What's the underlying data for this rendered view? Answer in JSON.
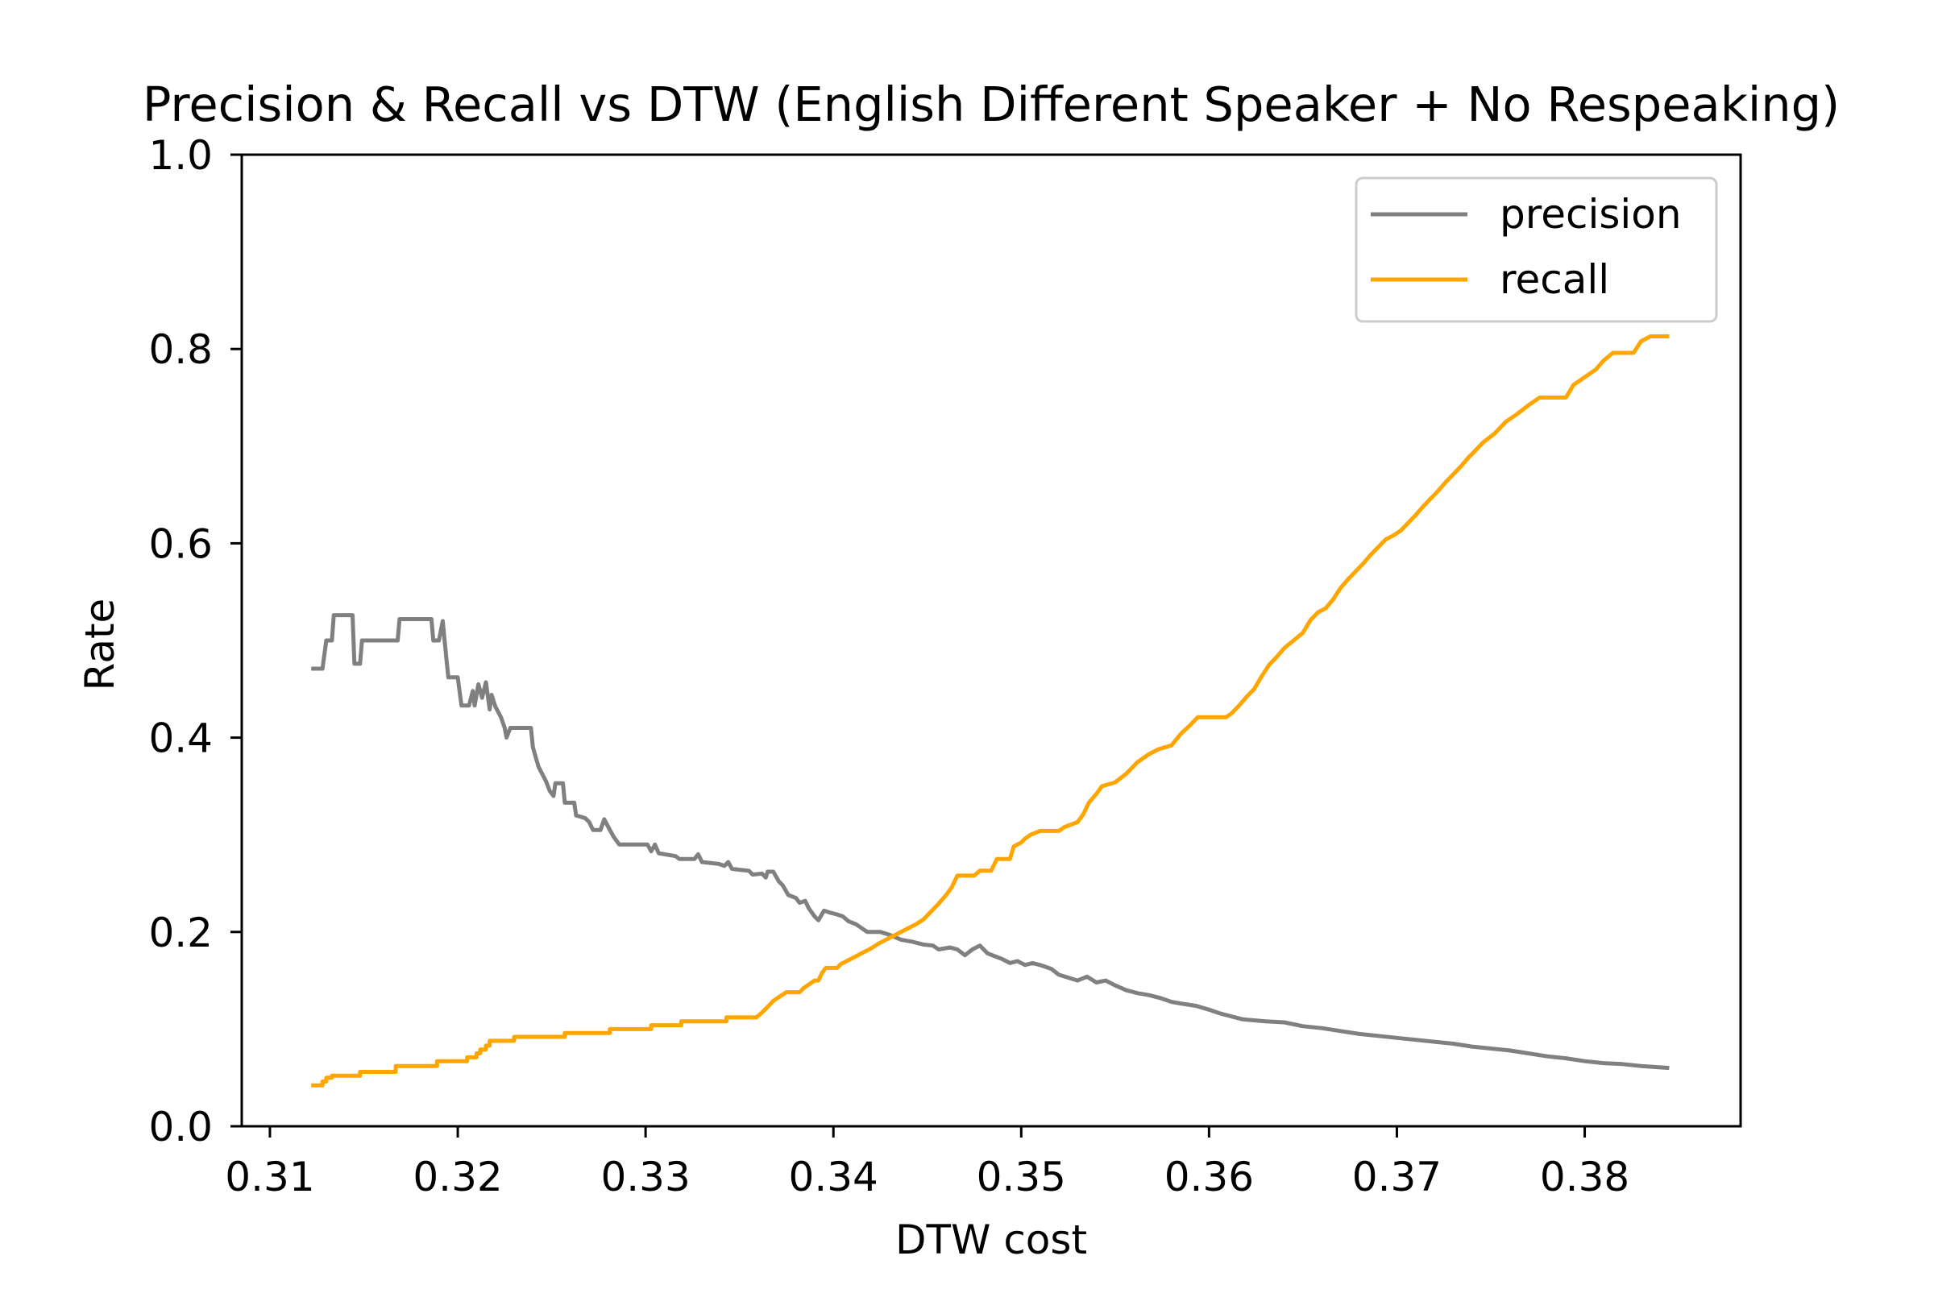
{
  "chart_data": {
    "type": "line",
    "title": "Precision & Recall vs DTW (English Different Speaker + No Respeaking)",
    "xlabel": "DTW cost",
    "ylabel": "Rate",
    "xlim": [
      0.3085,
      0.3883
    ],
    "ylim": [
      0.0,
      1.0
    ],
    "xticks": [
      0.31,
      0.32,
      0.33,
      0.34,
      0.35,
      0.36,
      0.37,
      0.38
    ],
    "xtick_labels": [
      "0.31",
      "0.32",
      "0.33",
      "0.34",
      "0.35",
      "0.36",
      "0.37",
      "0.38"
    ],
    "yticks": [
      0.0,
      0.2,
      0.4,
      0.6,
      0.8,
      1.0
    ],
    "ytick_labels": [
      "0.0",
      "0.2",
      "0.4",
      "0.6",
      "0.8",
      "1.0"
    ],
    "grid": false,
    "legend_position": "upper right",
    "series": [
      {
        "name": "precision",
        "color": "#808080",
        "points": [
          [
            0.3122,
            0.471
          ],
          [
            0.3128,
            0.471
          ],
          [
            0.313,
            0.5
          ],
          [
            0.3133,
            0.5
          ],
          [
            0.3134,
            0.526
          ],
          [
            0.3144,
            0.526
          ],
          [
            0.3145,
            0.476
          ],
          [
            0.3148,
            0.476
          ],
          [
            0.3149,
            0.5
          ],
          [
            0.3168,
            0.5
          ],
          [
            0.3169,
            0.522
          ],
          [
            0.3186,
            0.522
          ],
          [
            0.3187,
            0.5
          ],
          [
            0.319,
            0.5
          ],
          [
            0.3192,
            0.52
          ],
          [
            0.3194,
            0.48
          ],
          [
            0.3195,
            0.462
          ],
          [
            0.32,
            0.462
          ],
          [
            0.3202,
            0.433
          ],
          [
            0.3206,
            0.433
          ],
          [
            0.3208,
            0.448
          ],
          [
            0.3209,
            0.433
          ],
          [
            0.3211,
            0.455
          ],
          [
            0.3213,
            0.441
          ],
          [
            0.3215,
            0.457
          ],
          [
            0.3217,
            0.429
          ],
          [
            0.3218,
            0.444
          ],
          [
            0.322,
            0.432
          ],
          [
            0.3223,
            0.421
          ],
          [
            0.3225,
            0.41
          ],
          [
            0.3226,
            0.4
          ],
          [
            0.3228,
            0.41
          ],
          [
            0.3239,
            0.41
          ],
          [
            0.324,
            0.39
          ],
          [
            0.3243,
            0.37
          ],
          [
            0.3247,
            0.355
          ],
          [
            0.3249,
            0.345
          ],
          [
            0.3251,
            0.34
          ],
          [
            0.3252,
            0.353
          ],
          [
            0.3256,
            0.353
          ],
          [
            0.3257,
            0.333
          ],
          [
            0.3262,
            0.333
          ],
          [
            0.3263,
            0.32
          ],
          [
            0.3268,
            0.317
          ],
          [
            0.327,
            0.313
          ],
          [
            0.3272,
            0.305
          ],
          [
            0.3276,
            0.305
          ],
          [
            0.3278,
            0.316
          ],
          [
            0.3281,
            0.305
          ],
          [
            0.3283,
            0.298
          ],
          [
            0.3286,
            0.29
          ],
          [
            0.3292,
            0.29
          ],
          [
            0.3301,
            0.29
          ],
          [
            0.3303,
            0.283
          ],
          [
            0.3305,
            0.29
          ],
          [
            0.3307,
            0.281
          ],
          [
            0.3316,
            0.278
          ],
          [
            0.3318,
            0.275
          ],
          [
            0.3326,
            0.275
          ],
          [
            0.3328,
            0.28
          ],
          [
            0.333,
            0.272
          ],
          [
            0.3339,
            0.27
          ],
          [
            0.3342,
            0.268
          ],
          [
            0.3344,
            0.272
          ],
          [
            0.3346,
            0.265
          ],
          [
            0.335,
            0.264
          ],
          [
            0.3355,
            0.263
          ],
          [
            0.3357,
            0.259
          ],
          [
            0.3362,
            0.26
          ],
          [
            0.3364,
            0.256
          ],
          [
            0.3365,
            0.262
          ],
          [
            0.3368,
            0.262
          ],
          [
            0.3371,
            0.252
          ],
          [
            0.3373,
            0.248
          ],
          [
            0.3376,
            0.238
          ],
          [
            0.338,
            0.235
          ],
          [
            0.3382,
            0.23
          ],
          [
            0.3385,
            0.232
          ],
          [
            0.3387,
            0.224
          ],
          [
            0.339,
            0.216
          ],
          [
            0.3392,
            0.212
          ],
          [
            0.3395,
            0.222
          ],
          [
            0.3398,
            0.22
          ],
          [
            0.3402,
            0.218
          ],
          [
            0.3405,
            0.216
          ],
          [
            0.3408,
            0.211
          ],
          [
            0.3412,
            0.208
          ],
          [
            0.3415,
            0.204
          ],
          [
            0.3418,
            0.2
          ],
          [
            0.3425,
            0.2
          ],
          [
            0.343,
            0.197
          ],
          [
            0.3436,
            0.192
          ],
          [
            0.3442,
            0.19
          ],
          [
            0.3448,
            0.187
          ],
          [
            0.3453,
            0.186
          ],
          [
            0.3456,
            0.182
          ],
          [
            0.3462,
            0.184
          ],
          [
            0.3466,
            0.182
          ],
          [
            0.347,
            0.176
          ],
          [
            0.3474,
            0.182
          ],
          [
            0.3478,
            0.186
          ],
          [
            0.3482,
            0.178
          ],
          [
            0.3486,
            0.175
          ],
          [
            0.349,
            0.172
          ],
          [
            0.3494,
            0.168
          ],
          [
            0.3498,
            0.17
          ],
          [
            0.3502,
            0.166
          ],
          [
            0.3506,
            0.168
          ],
          [
            0.351,
            0.166
          ],
          [
            0.3516,
            0.162
          ],
          [
            0.352,
            0.156
          ],
          [
            0.3525,
            0.153
          ],
          [
            0.353,
            0.15
          ],
          [
            0.3535,
            0.154
          ],
          [
            0.354,
            0.148
          ],
          [
            0.3545,
            0.15
          ],
          [
            0.355,
            0.145
          ],
          [
            0.3556,
            0.14
          ],
          [
            0.3562,
            0.137
          ],
          [
            0.3568,
            0.135
          ],
          [
            0.3574,
            0.132
          ],
          [
            0.358,
            0.128
          ],
          [
            0.3586,
            0.126
          ],
          [
            0.3593,
            0.124
          ],
          [
            0.36,
            0.12
          ],
          [
            0.3606,
            0.116
          ],
          [
            0.3612,
            0.113
          ],
          [
            0.3618,
            0.11
          ],
          [
            0.3624,
            0.109
          ],
          [
            0.363,
            0.108
          ],
          [
            0.364,
            0.107
          ],
          [
            0.365,
            0.103
          ],
          [
            0.366,
            0.101
          ],
          [
            0.367,
            0.098
          ],
          [
            0.368,
            0.095
          ],
          [
            0.369,
            0.093
          ],
          [
            0.37,
            0.091
          ],
          [
            0.371,
            0.089
          ],
          [
            0.372,
            0.087
          ],
          [
            0.373,
            0.085
          ],
          [
            0.374,
            0.082
          ],
          [
            0.375,
            0.08
          ],
          [
            0.376,
            0.078
          ],
          [
            0.377,
            0.075
          ],
          [
            0.378,
            0.072
          ],
          [
            0.379,
            0.07
          ],
          [
            0.38,
            0.067
          ],
          [
            0.381,
            0.065
          ],
          [
            0.382,
            0.064
          ],
          [
            0.383,
            0.062
          ],
          [
            0.3845,
            0.06
          ]
        ]
      },
      {
        "name": "recall",
        "color": "#ffa500",
        "points": [
          [
            0.3122,
            0.042
          ],
          [
            0.3128,
            0.042
          ],
          [
            0.3128,
            0.046
          ],
          [
            0.313,
            0.046
          ],
          [
            0.313,
            0.05
          ],
          [
            0.3133,
            0.05
          ],
          [
            0.3133,
            0.052
          ],
          [
            0.3148,
            0.052
          ],
          [
            0.3148,
            0.056
          ],
          [
            0.3167,
            0.056
          ],
          [
            0.3167,
            0.062
          ],
          [
            0.3189,
            0.062
          ],
          [
            0.3189,
            0.067
          ],
          [
            0.3205,
            0.067
          ],
          [
            0.3205,
            0.071
          ],
          [
            0.321,
            0.071
          ],
          [
            0.321,
            0.075
          ],
          [
            0.3212,
            0.075
          ],
          [
            0.3212,
            0.079
          ],
          [
            0.3215,
            0.079
          ],
          [
            0.3215,
            0.083
          ],
          [
            0.3217,
            0.083
          ],
          [
            0.3217,
            0.088
          ],
          [
            0.323,
            0.088
          ],
          [
            0.323,
            0.092
          ],
          [
            0.3257,
            0.092
          ],
          [
            0.3257,
            0.096
          ],
          [
            0.3281,
            0.096
          ],
          [
            0.3281,
            0.1
          ],
          [
            0.3303,
            0.1
          ],
          [
            0.3303,
            0.104
          ],
          [
            0.3319,
            0.104
          ],
          [
            0.3319,
            0.108
          ],
          [
            0.3343,
            0.108
          ],
          [
            0.3343,
            0.112
          ],
          [
            0.3359,
            0.112
          ],
          [
            0.3362,
            0.117
          ],
          [
            0.3364,
            0.121
          ],
          [
            0.3366,
            0.125
          ],
          [
            0.3368,
            0.129
          ],
          [
            0.3371,
            0.133
          ],
          [
            0.3375,
            0.138
          ],
          [
            0.3382,
            0.138
          ],
          [
            0.3384,
            0.142
          ],
          [
            0.3387,
            0.146
          ],
          [
            0.339,
            0.15
          ],
          [
            0.3392,
            0.15
          ],
          [
            0.3394,
            0.158
          ],
          [
            0.3396,
            0.163
          ],
          [
            0.3402,
            0.163
          ],
          [
            0.3404,
            0.167
          ],
          [
            0.3408,
            0.171
          ],
          [
            0.3412,
            0.175
          ],
          [
            0.3416,
            0.179
          ],
          [
            0.342,
            0.183
          ],
          [
            0.3424,
            0.188
          ],
          [
            0.3428,
            0.192
          ],
          [
            0.3432,
            0.196
          ],
          [
            0.3436,
            0.2
          ],
          [
            0.344,
            0.204
          ],
          [
            0.3444,
            0.208
          ],
          [
            0.3448,
            0.213
          ],
          [
            0.3452,
            0.221
          ],
          [
            0.3456,
            0.229
          ],
          [
            0.346,
            0.238
          ],
          [
            0.3463,
            0.246
          ],
          [
            0.3466,
            0.258
          ],
          [
            0.3475,
            0.258
          ],
          [
            0.3478,
            0.263
          ],
          [
            0.3484,
            0.263
          ],
          [
            0.3487,
            0.275
          ],
          [
            0.3494,
            0.275
          ],
          [
            0.3496,
            0.288
          ],
          [
            0.35,
            0.292
          ],
          [
            0.3502,
            0.296
          ],
          [
            0.3505,
            0.3
          ],
          [
            0.351,
            0.304
          ],
          [
            0.352,
            0.304
          ],
          [
            0.3523,
            0.308
          ],
          [
            0.353,
            0.313
          ],
          [
            0.3533,
            0.321
          ],
          [
            0.3536,
            0.333
          ],
          [
            0.354,
            0.342
          ],
          [
            0.3543,
            0.35
          ],
          [
            0.355,
            0.354
          ],
          [
            0.3556,
            0.363
          ],
          [
            0.3562,
            0.375
          ],
          [
            0.3568,
            0.383
          ],
          [
            0.3573,
            0.388
          ],
          [
            0.358,
            0.392
          ],
          [
            0.3585,
            0.404
          ],
          [
            0.359,
            0.413
          ],
          [
            0.3594,
            0.421
          ],
          [
            0.3609,
            0.421
          ],
          [
            0.3612,
            0.425
          ],
          [
            0.3616,
            0.433
          ],
          [
            0.362,
            0.442
          ],
          [
            0.3624,
            0.45
          ],
          [
            0.3628,
            0.463
          ],
          [
            0.3632,
            0.475
          ],
          [
            0.3636,
            0.483
          ],
          [
            0.364,
            0.492
          ],
          [
            0.3645,
            0.5
          ],
          [
            0.365,
            0.508
          ],
          [
            0.3654,
            0.521
          ],
          [
            0.3658,
            0.529
          ],
          [
            0.3662,
            0.533
          ],
          [
            0.3666,
            0.542
          ],
          [
            0.367,
            0.554
          ],
          [
            0.3674,
            0.563
          ],
          [
            0.3678,
            0.571
          ],
          [
            0.3682,
            0.579
          ],
          [
            0.3686,
            0.588
          ],
          [
            0.369,
            0.596
          ],
          [
            0.3694,
            0.604
          ],
          [
            0.3698,
            0.608
          ],
          [
            0.3702,
            0.613
          ],
          [
            0.3706,
            0.621
          ],
          [
            0.371,
            0.629
          ],
          [
            0.3714,
            0.638
          ],
          [
            0.3718,
            0.646
          ],
          [
            0.3722,
            0.654
          ],
          [
            0.3726,
            0.663
          ],
          [
            0.373,
            0.671
          ],
          [
            0.3734,
            0.679
          ],
          [
            0.3738,
            0.688
          ],
          [
            0.3742,
            0.696
          ],
          [
            0.3746,
            0.704
          ],
          [
            0.3752,
            0.713
          ],
          [
            0.3758,
            0.725
          ],
          [
            0.3764,
            0.733
          ],
          [
            0.377,
            0.742
          ],
          [
            0.3776,
            0.75
          ],
          [
            0.379,
            0.75
          ],
          [
            0.3794,
            0.763
          ],
          [
            0.38,
            0.771
          ],
          [
            0.3806,
            0.779
          ],
          [
            0.381,
            0.788
          ],
          [
            0.3815,
            0.796
          ],
          [
            0.3826,
            0.796
          ],
          [
            0.383,
            0.808
          ],
          [
            0.3835,
            0.813
          ],
          [
            0.3845,
            0.813
          ]
        ]
      }
    ]
  }
}
